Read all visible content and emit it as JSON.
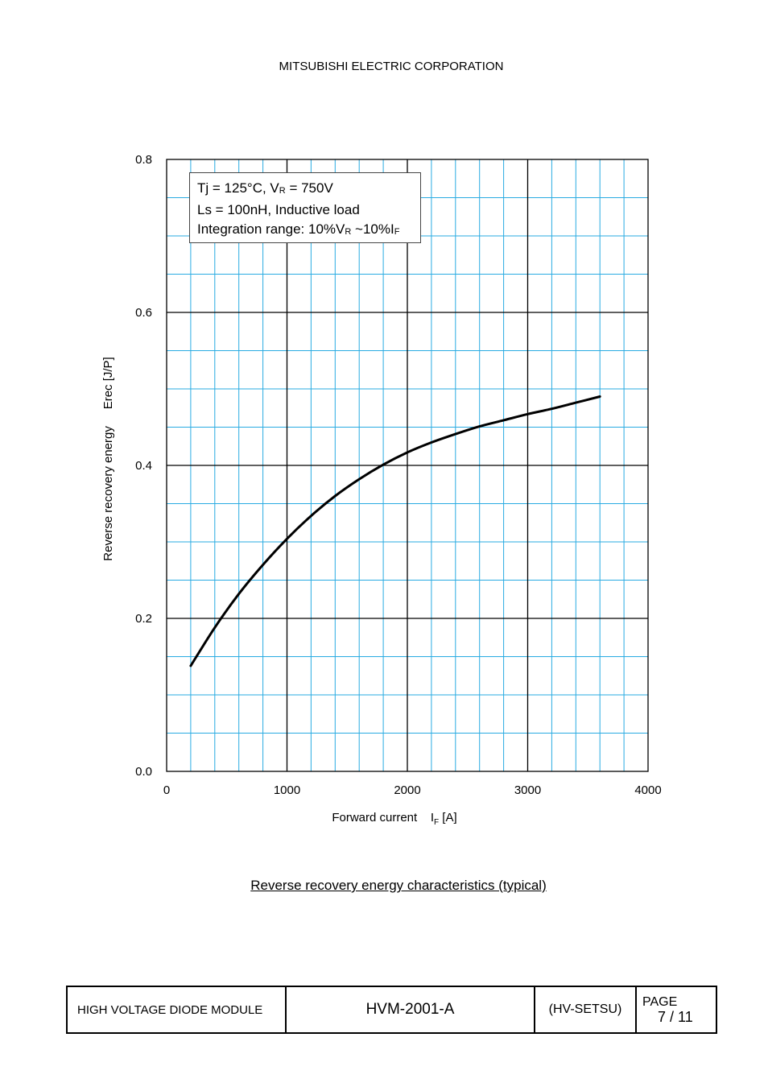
{
  "header": {
    "company": "MITSUBISHI ELECTRIC CORPORATION"
  },
  "legend": {
    "line1_pre": "Tj = 125°C, V",
    "line1_sub": "R",
    "line1_post": " = 750V",
    "line2": "Ls = 100nH, Inductive load",
    "line3_pre": "Integration range: 10%V",
    "line3_sub1": "R",
    "line3_mid": " ~10%I",
    "line3_sub2": "F"
  },
  "chart_data": {
    "type": "line",
    "title": "Reverse recovery energy characteristics (typical)",
    "xlabel_pre": "Forward current    I",
    "xlabel_sub": "F",
    "xlabel_post": " [A]",
    "ylabel": "Reverse recovery energy     Erec [J/P]",
    "xlim": [
      0,
      4000
    ],
    "ylim": [
      0,
      0.8
    ],
    "x_ticks": [
      "0",
      "1000",
      "2000",
      "3000",
      "4000"
    ],
    "y_ticks": [
      "0.0",
      "0.2",
      "0.4",
      "0.6",
      "0.8"
    ],
    "grid": true,
    "grid_color": "#29abe2",
    "series": [
      {
        "x": [
          200,
          400,
          600,
          800,
          1000,
          1200,
          1400,
          1600,
          1800,
          2000,
          2200,
          2400,
          2600,
          2800,
          3000,
          3200,
          3400,
          3600
        ],
        "y": [
          0.138,
          0.188,
          0.232,
          0.27,
          0.304,
          0.334,
          0.36,
          0.382,
          0.401,
          0.417,
          0.43,
          0.441,
          0.451,
          0.459,
          0.467,
          0.474,
          0.482,
          0.49
        ],
        "color": "#000000"
      }
    ]
  },
  "footer": {
    "product": "HIGH VOLTAGE DIODE MODULE",
    "doc_no": "HVM-2001-A",
    "code": "(HV-SETSU)",
    "page_label": "PAGE",
    "page_no": "7 / 11"
  }
}
